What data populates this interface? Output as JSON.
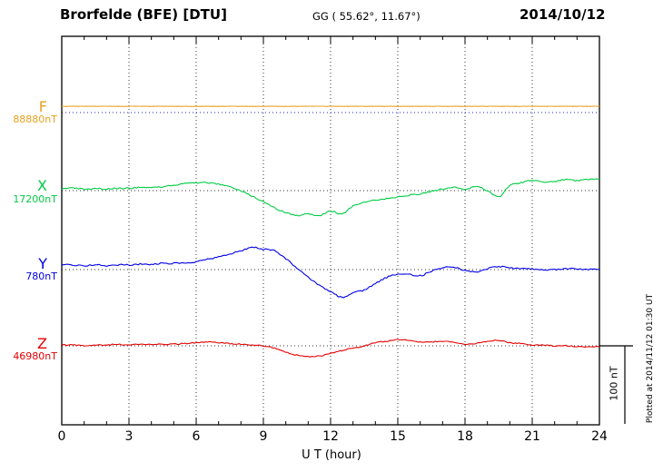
{
  "header": {
    "station": "Brorfelde (BFE)  [DTU]",
    "coordinates": "GG ( 55.62°,  11.67°)",
    "date": "2014/10/12"
  },
  "footer": {
    "xlabel": "U T (hour)"
  },
  "side": {
    "scale_label": "100 nT",
    "plotted_note": "Plotted at 2014/11/12 01:30 UT"
  },
  "chart_data": {
    "type": "line",
    "title": "Brorfelde (BFE) [DTU] magnetogram",
    "xlabel": "U T (hour)",
    "xlim": [
      0,
      24
    ],
    "x_ticks": [
      0,
      3,
      6,
      9,
      12,
      15,
      18,
      21,
      24
    ],
    "grid": "dotted vertical at 3-hour marks, dotted horizontal baselines per component",
    "scale_bar_nT": 100,
    "hours": [
      0,
      0.5,
      1,
      1.5,
      2,
      2.5,
      3,
      3.5,
      4,
      4.5,
      5,
      5.5,
      6,
      6.5,
      7,
      7.5,
      8,
      8.5,
      9,
      9.5,
      10,
      10.5,
      11,
      11.5,
      12,
      12.5,
      13,
      13.5,
      14,
      14.5,
      15,
      15.5,
      16,
      16.5,
      17,
      17.5,
      18,
      18.5,
      19,
      19.5,
      20,
      20.5,
      21,
      21.5,
      22,
      22.5,
      23,
      23.5,
      24
    ],
    "series": [
      {
        "name": "F",
        "color": "#e8a020",
        "baseline_label": "88880nT",
        "baseline_color": "#2222cc",
        "offsets_nT": [
          8,
          8,
          8,
          8,
          8,
          8,
          8,
          8,
          8,
          8,
          8,
          8,
          8,
          8,
          8,
          8,
          8,
          8,
          8,
          8,
          8,
          8,
          8,
          8,
          8,
          8,
          8,
          8,
          8,
          8,
          8,
          8,
          8,
          8,
          8,
          8,
          8,
          8,
          8,
          8,
          8,
          8,
          8,
          8,
          8,
          8,
          8,
          8,
          8
        ]
      },
      {
        "name": "X",
        "color": "#00cc44",
        "baseline_label": "17200nT",
        "baseline_color": "#333333",
        "offsets_nT": [
          2,
          3,
          2,
          3,
          2,
          3,
          3,
          4,
          4,
          5,
          7,
          9,
          10,
          10,
          8,
          5,
          0,
          -7,
          -14,
          -22,
          -28,
          -32,
          -30,
          -32,
          -26,
          -30,
          -20,
          -15,
          -12,
          -10,
          -8,
          -6,
          -4,
          -1,
          2,
          4,
          2,
          5,
          0,
          -8,
          6,
          10,
          13,
          11,
          12,
          14,
          13,
          14,
          15
        ]
      },
      {
        "name": "Y",
        "color": "#0000e6",
        "baseline_label": "780nT",
        "baseline_color": "#333333",
        "offsets_nT": [
          6,
          6,
          5,
          6,
          5,
          6,
          6,
          7,
          7,
          8,
          8,
          9,
          10,
          13,
          16,
          20,
          24,
          29,
          26,
          24,
          14,
          2,
          -10,
          -20,
          -28,
          -36,
          -30,
          -26,
          -18,
          -10,
          -6,
          -6,
          -8,
          -2,
          2,
          3,
          -1,
          -3,
          1,
          4,
          2,
          1,
          1,
          0,
          0,
          1,
          1,
          0,
          0
        ]
      },
      {
        "name": "Z",
        "color": "#e60000",
        "baseline_label": "46980nT",
        "baseline_color": "#333333",
        "offsets_nT": [
          1,
          1,
          0,
          1,
          1,
          2,
          1,
          2,
          2,
          2,
          2,
          3,
          4,
          5,
          4,
          3,
          2,
          1,
          0,
          -3,
          -8,
          -12,
          -14,
          -13,
          -10,
          -6,
          -3,
          0,
          4,
          6,
          8,
          7,
          5,
          5,
          6,
          4,
          2,
          3,
          6,
          7,
          4,
          3,
          1,
          1,
          0,
          0,
          -1,
          -1,
          -1
        ]
      }
    ]
  }
}
